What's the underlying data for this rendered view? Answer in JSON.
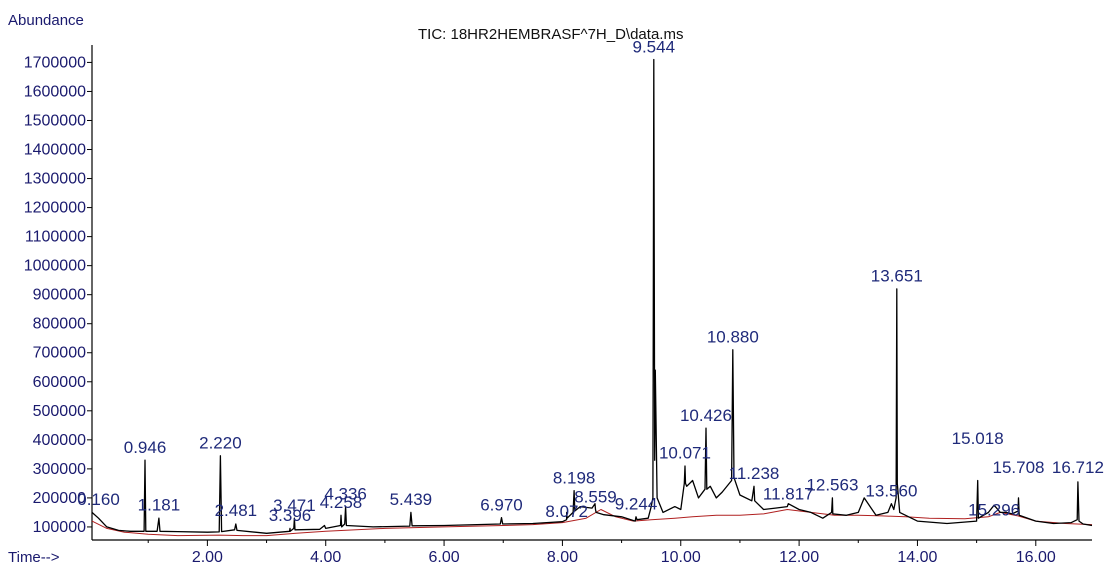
{
  "chart_data": {
    "type": "line",
    "title": "TIC: 18HR2HEMBRASF^7H_D\\data.ms",
    "ylabel": "Abundance",
    "xlabel": "Time-->",
    "xlim": [
      0.05,
      16.95
    ],
    "ylim": [
      55000,
      1760000
    ],
    "x_ticks": [
      "2.00",
      "4.00",
      "6.00",
      "8.00",
      "10.00",
      "12.00",
      "14.00",
      "16.00"
    ],
    "y_ticks": [
      "100000",
      "200000",
      "300000",
      "400000",
      "500000",
      "600000",
      "700000",
      "800000",
      "900000",
      "1000000",
      "1100000",
      "1200000",
      "1300000",
      "1400000",
      "1500000",
      "1600000",
      "1700000"
    ],
    "series": [
      {
        "color": "#000000",
        "x": [
          0.05,
          0.16,
          0.3,
          0.5,
          0.7,
          0.93,
          0.946,
          0.96,
          1.15,
          1.181,
          1.2,
          1.5,
          2.0,
          2.2,
          2.22,
          2.24,
          2.46,
          2.481,
          2.5,
          3.0,
          3.39,
          3.396,
          3.4,
          3.46,
          3.471,
          3.48,
          3.9,
          3.98,
          4.0,
          4.25,
          4.258,
          4.27,
          4.32,
          4.336,
          4.35,
          4.8,
          5.42,
          5.439,
          5.46,
          6.0,
          6.95,
          6.97,
          6.99,
          7.5,
          8.0,
          8.07,
          8.072,
          8.08,
          8.18,
          8.198,
          8.21,
          8.3,
          8.5,
          8.55,
          8.559,
          8.57,
          8.7,
          9.0,
          9.23,
          9.244,
          9.26,
          9.45,
          9.5,
          9.53,
          9.544,
          9.56,
          9.57,
          9.6,
          9.7,
          9.9,
          10.0,
          10.06,
          10.071,
          10.08,
          10.1,
          10.2,
          10.3,
          10.41,
          10.426,
          10.44,
          10.5,
          10.6,
          10.7,
          10.86,
          10.88,
          10.9,
          11.0,
          11.2,
          11.238,
          11.25,
          11.4,
          11.6,
          11.8,
          11.817,
          12.0,
          12.2,
          12.4,
          12.55,
          12.563,
          12.57,
          12.8,
          13.0,
          13.1,
          13.3,
          13.5,
          13.56,
          13.6,
          13.64,
          13.651,
          13.66,
          13.7,
          14.0,
          14.5,
          15.0,
          15.018,
          15.03,
          15.2,
          15.296,
          15.4,
          15.5,
          15.6,
          15.7,
          15.708,
          15.72,
          16.0,
          16.3,
          16.6,
          16.7,
          16.712,
          16.73,
          16.8,
          16.95
        ],
        "y": [
          150000,
          130000,
          100000,
          88000,
          85000,
          85000,
          330000,
          85000,
          85000,
          130000,
          85000,
          84000,
          82000,
          83000,
          345000,
          84000,
          90000,
          110000,
          88000,
          78000,
          85000,
          95000,
          85000,
          95000,
          130000,
          90000,
          92000,
          105000,
          95000,
          105000,
          140000,
          100000,
          110000,
          170000,
          105000,
          100000,
          103000,
          150000,
          104000,
          105000,
          110000,
          132000,
          110000,
          112000,
          118000,
          125000,
          150000,
          130000,
          150000,
          225000,
          155000,
          170000,
          165000,
          180000,
          160000,
          150000,
          142000,
          135000,
          120000,
          135000,
          125000,
          130000,
          170000,
          200000,
          1710000,
          330000,
          640000,
          200000,
          150000,
          170000,
          160000,
          250000,
          310000,
          250000,
          240000,
          260000,
          200000,
          230000,
          440000,
          230000,
          240000,
          200000,
          220000,
          260000,
          710000,
          270000,
          210000,
          190000,
          240000,
          190000,
          160000,
          165000,
          170000,
          180000,
          160000,
          150000,
          130000,
          150000,
          200000,
          145000,
          140000,
          150000,
          200000,
          140000,
          150000,
          180000,
          160000,
          200000,
          920000,
          250000,
          150000,
          120000,
          112000,
          120000,
          260000,
          130000,
          150000,
          175000,
          150000,
          150000,
          145000,
          155000,
          200000,
          140000,
          120000,
          112000,
          115000,
          125000,
          255000,
          120000,
          110000,
          105000
        ]
      },
      {
        "color": "#b02020",
        "x": [
          0.05,
          0.3,
          0.6,
          1.0,
          1.5,
          2.2,
          2.6,
          3.0,
          3.5,
          4.0,
          5.0,
          6.0,
          7.0,
          7.5,
          8.0,
          8.4,
          8.65,
          8.9,
          9.2,
          9.5,
          9.9,
          10.2,
          10.6,
          11.0,
          11.4,
          11.8,
          12.2,
          12.6,
          13.0,
          13.4,
          13.8,
          14.2,
          14.8,
          15.2,
          15.4,
          15.7,
          16.0,
          16.5,
          16.95
        ],
        "y": [
          120000,
          95000,
          82000,
          75000,
          70000,
          72000,
          70000,
          70000,
          78000,
          85000,
          95000,
          100000,
          105000,
          108000,
          115000,
          130000,
          160000,
          135000,
          120000,
          125000,
          130000,
          135000,
          140000,
          140000,
          145000,
          160000,
          150000,
          140000,
          140000,
          138000,
          135000,
          130000,
          128000,
          135000,
          150000,
          138000,
          120000,
          112000,
          108000
        ]
      }
    ],
    "peak_labels": [
      {
        "text": "0.160",
        "x": 0.16,
        "y": 175000
      },
      {
        "text": "0.946",
        "x": 0.946,
        "y": 355000
      },
      {
        "text": "1.181",
        "x": 1.181,
        "y": 157000
      },
      {
        "text": "2.220",
        "x": 2.22,
        "y": 370000
      },
      {
        "text": "2.481",
        "x": 2.481,
        "y": 137000
      },
      {
        "text": "3.396",
        "x": 3.396,
        "y": 120000
      },
      {
        "text": "3.471",
        "x": 3.471,
        "y": 155000
      },
      {
        "text": "4.258",
        "x": 4.258,
        "y": 165000
      },
      {
        "text": "4.336",
        "x": 4.336,
        "y": 195000
      },
      {
        "text": "5.439",
        "x": 5.439,
        "y": 175000
      },
      {
        "text": "6.970",
        "x": 6.97,
        "y": 157000
      },
      {
        "text": "8.072",
        "x": 8.072,
        "y": 135000
      },
      {
        "text": "8.198",
        "x": 8.198,
        "y": 250000
      },
      {
        "text": "8.559",
        "x": 8.559,
        "y": 185000
      },
      {
        "text": "9.244",
        "x": 9.244,
        "y": 160000
      },
      {
        "text": "9.544",
        "x": 9.544,
        "y": 1735000
      },
      {
        "text": "10.071",
        "x": 10.071,
        "y": 335000
      },
      {
        "text": "10.426",
        "x": 10.426,
        "y": 465000
      },
      {
        "text": "10.880",
        "x": 10.88,
        "y": 735000
      },
      {
        "text": "11.238",
        "x": 11.238,
        "y": 265000
      },
      {
        "text": "11.817",
        "x": 11.817,
        "y": 195000
      },
      {
        "text": "12.563",
        "x": 12.563,
        "y": 225000
      },
      {
        "text": "13.560",
        "x": 13.56,
        "y": 205000
      },
      {
        "text": "13.651",
        "x": 13.651,
        "y": 945000
      },
      {
        "text": "15.018",
        "x": 15.018,
        "y": 385000
      },
      {
        "text": "15.296",
        "x": 15.296,
        "y": 140000
      },
      {
        "text": "15.708",
        "x": 15.708,
        "y": 285000
      },
      {
        "text": "16.712",
        "x": 16.712,
        "y": 285000
      }
    ]
  }
}
